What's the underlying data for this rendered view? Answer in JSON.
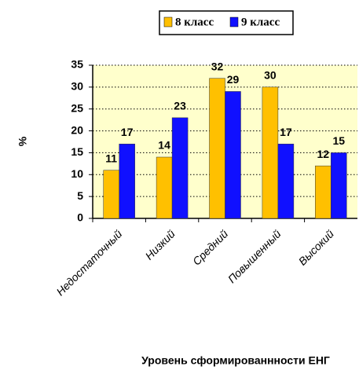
{
  "chart_data": {
    "type": "bar",
    "categories": [
      "Недостаточный",
      "Низкий",
      "Средний",
      "Повышенный",
      "Высокий"
    ],
    "series": [
      {
        "name": "8 класс",
        "color": "#ffc000",
        "values": [
          11,
          14,
          32,
          30,
          12
        ]
      },
      {
        "name": "9 класс",
        "color": "#1010ff",
        "values": [
          17,
          23,
          29,
          17,
          15
        ]
      }
    ],
    "ylim": [
      0,
      35
    ],
    "yticks": [
      0,
      5,
      10,
      15,
      20,
      25,
      30,
      35
    ],
    "y_label": "%",
    "x_label": "Уровень сформированнности ЕНГ",
    "grid": true,
    "legend": "top",
    "plot_background": "#ffffcc"
  }
}
